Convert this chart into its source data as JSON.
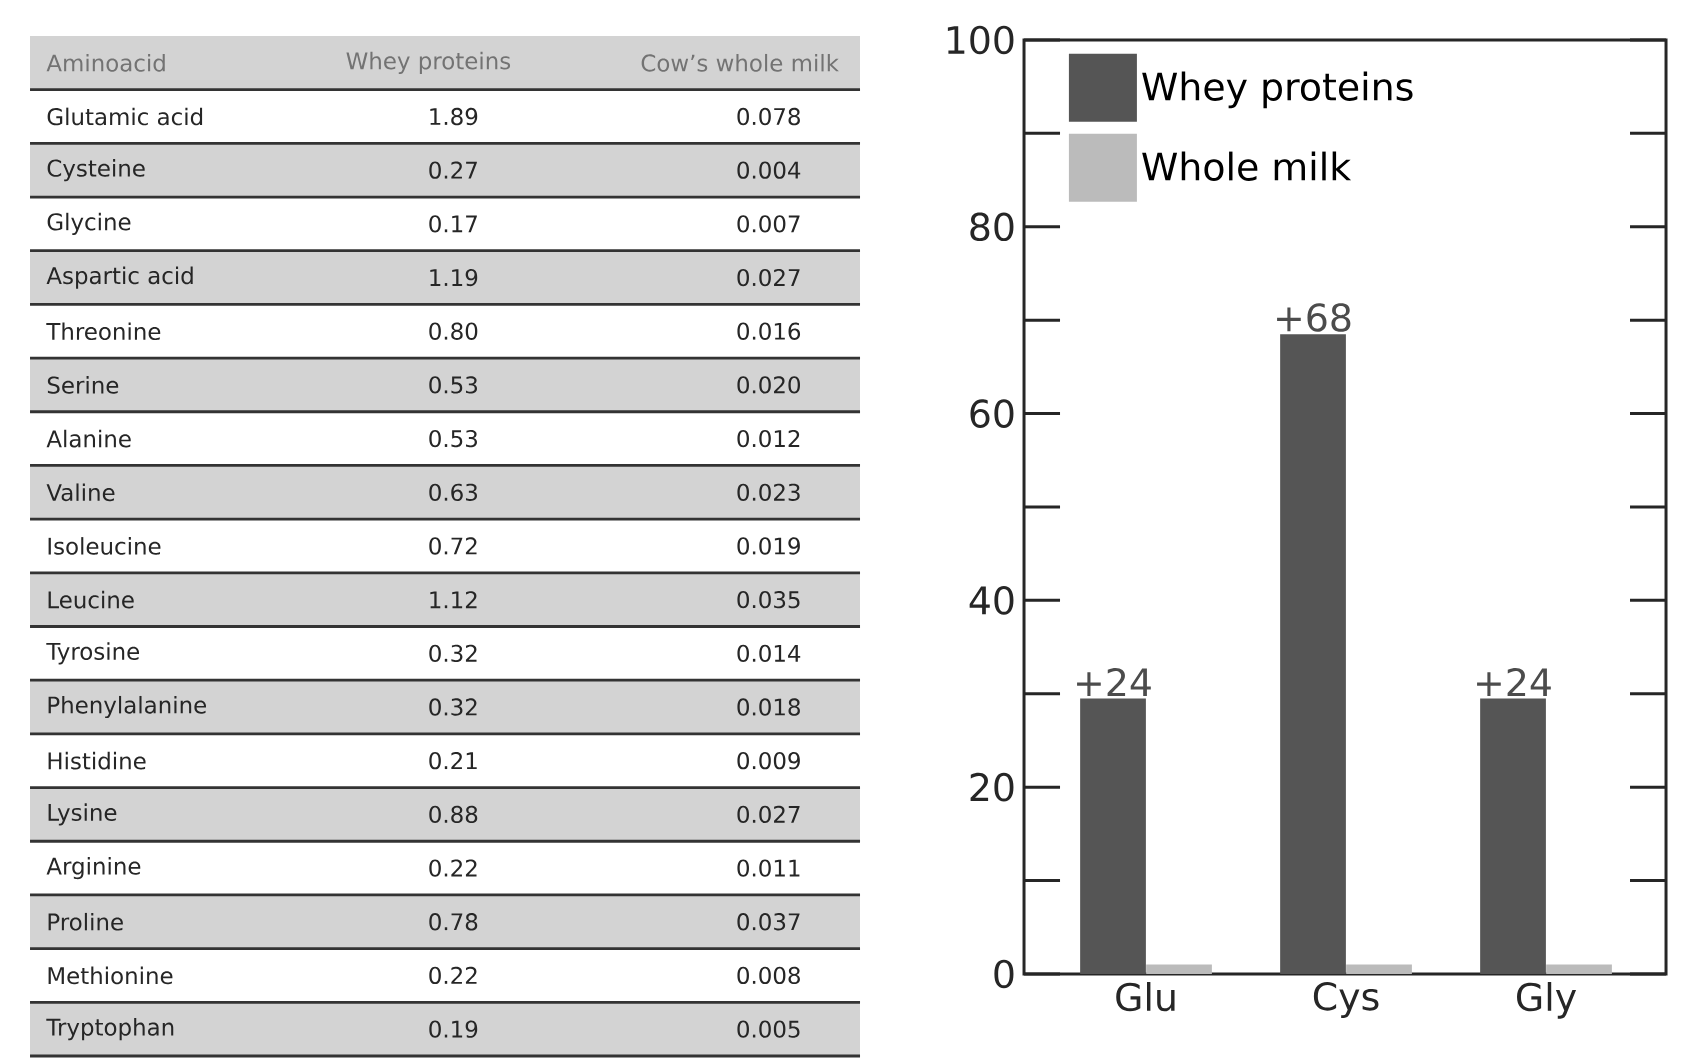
{
  "chart_data": [
    {
      "type": "other",
      "xlabel": "Aminoacid",
      "categories": [
        "Glutamic acid",
        "Cysteine",
        "Glycine",
        "Aspartic acid",
        "Threonine",
        "Serine",
        "Alanine",
        "Valine",
        "Isoleucine",
        "Leucine",
        "Tyrosine",
        "Phenylalanine",
        "Histidine",
        "Lysine",
        "Arginine",
        "Proline",
        "Methionine",
        "Tryptophan"
      ],
      "series": [
        {
          "name": "Whey proteins",
          "values": [
            1.89,
            0.27,
            0.17,
            1.19,
            0.8,
            0.53,
            0.53,
            0.63,
            0.72,
            1.12,
            0.32,
            0.32,
            0.21,
            0.88,
            0.22,
            0.78,
            0.22,
            0.19
          ],
          "value_labels": [
            "1.89",
            "0.27",
            "0.17",
            "1.19",
            "0.80",
            "0.53",
            "0.53",
            "0.63",
            "0.72",
            "1.12",
            "0.32",
            "0.32",
            "0.21",
            "0.88",
            "0.22",
            "0.78",
            "0.22",
            "0.19"
          ]
        },
        {
          "name": "Cow’s whole milk",
          "values": [
            0.078,
            0.004,
            0.007,
            0.027,
            0.016,
            0.02,
            0.012,
            0.023,
            0.019,
            0.035,
            0.014,
            0.018,
            0.009,
            0.027,
            0.011,
            0.037,
            0.008,
            0.005
          ],
          "value_labels": [
            "0.078",
            "0.004",
            "0.007",
            "0.027",
            "0.016",
            "0.020",
            "0.012",
            "0.023",
            "0.019",
            "0.035",
            "0.014",
            "0.018",
            "0.009",
            "0.027",
            "0.011",
            "0.037",
            "0.008",
            "0.005"
          ]
        }
      ],
      "data_labels": true
    },
    {
      "type": "bar",
      "categories": [
        "Glu",
        "Cys",
        "Gly"
      ],
      "series": [
        {
          "name": "Whey proteins",
          "color": "#555555",
          "values": [
            29.5,
            68.5,
            29.5
          ]
        },
        {
          "name": "Whole milk",
          "color": "#bbbbbb",
          "values": [
            1,
            1,
            1
          ]
        }
      ],
      "ylim": [
        0,
        100
      ],
      "yticks": [
        0,
        20,
        40,
        60,
        80,
        100
      ],
      "legend": "top left",
      "annotations": [
        {
          "text": "+24",
          "x": "Glu",
          "y": 29.5
        },
        {
          "text": "+68",
          "x": "Cys",
          "y": 68.5
        },
        {
          "text": "+24",
          "x": "Gly",
          "y": 29.5
        }
      ]
    }
  ]
}
